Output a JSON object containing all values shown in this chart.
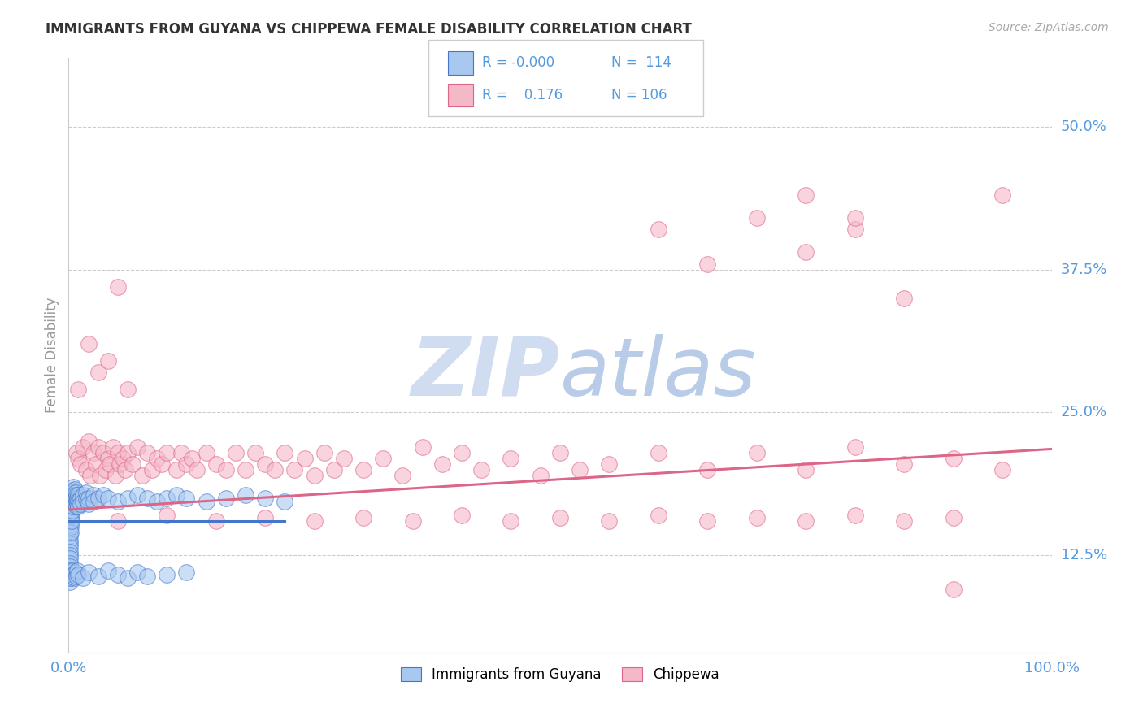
{
  "title": "IMMIGRANTS FROM GUYANA VS CHIPPEWA FEMALE DISABILITY CORRELATION CHART",
  "source": "Source: ZipAtlas.com",
  "ylabel_label": "Female Disability",
  "x_tick_labels": [
    "0.0%",
    "100.0%"
  ],
  "y_tick_labels": [
    "12.5%",
    "25.0%",
    "37.5%",
    "50.0%"
  ],
  "y_tick_values": [
    0.125,
    0.25,
    0.375,
    0.5
  ],
  "xlim": [
    0.0,
    1.0
  ],
  "ylim": [
    0.04,
    0.56
  ],
  "legend_label1": "Immigrants from Guyana",
  "legend_label2": "Chippewa",
  "R1": "-0.000",
  "N1": "114",
  "R2": "0.176",
  "N2": "106",
  "color_blue": "#a8c8f0",
  "color_pink": "#f5b8c8",
  "color_line_blue": "#4477cc",
  "color_line_pink": "#dd6688",
  "background_color": "#ffffff",
  "grid_color": "#cccccc",
  "title_color": "#333333",
  "axis_label_color": "#5599dd",
  "watermark_zip_color": "#d0ddf0",
  "watermark_atlas_color": "#b0cce8",
  "blue_scatter_x": [
    0.001,
    0.001,
    0.001,
    0.001,
    0.001,
    0.001,
    0.001,
    0.001,
    0.001,
    0.001,
    0.001,
    0.001,
    0.001,
    0.001,
    0.001,
    0.001,
    0.001,
    0.001,
    0.001,
    0.001,
    0.002,
    0.002,
    0.002,
    0.002,
    0.002,
    0.002,
    0.002,
    0.002,
    0.002,
    0.002,
    0.003,
    0.003,
    0.003,
    0.003,
    0.003,
    0.003,
    0.003,
    0.003,
    0.004,
    0.004,
    0.004,
    0.004,
    0.004,
    0.004,
    0.005,
    0.005,
    0.005,
    0.005,
    0.005,
    0.006,
    0.006,
    0.006,
    0.006,
    0.007,
    0.007,
    0.007,
    0.008,
    0.008,
    0.008,
    0.009,
    0.009,
    0.01,
    0.01,
    0.01,
    0.012,
    0.012,
    0.015,
    0.015,
    0.018,
    0.018,
    0.02,
    0.02,
    0.025,
    0.025,
    0.03,
    0.035,
    0.04,
    0.05,
    0.06,
    0.07,
    0.08,
    0.09,
    0.1,
    0.11,
    0.12,
    0.14,
    0.16,
    0.18,
    0.2,
    0.22,
    0.001,
    0.001,
    0.001,
    0.002,
    0.002,
    0.003,
    0.003,
    0.004,
    0.005,
    0.006,
    0.007,
    0.008,
    0.009,
    0.01,
    0.015,
    0.02,
    0.03,
    0.04,
    0.05,
    0.06,
    0.07,
    0.08,
    0.1,
    0.12
  ],
  "blue_scatter_y": [
    0.175,
    0.172,
    0.168,
    0.165,
    0.162,
    0.158,
    0.155,
    0.152,
    0.148,
    0.145,
    0.142,
    0.138,
    0.135,
    0.132,
    0.128,
    0.125,
    0.122,
    0.118,
    0.115,
    0.112,
    0.178,
    0.175,
    0.172,
    0.168,
    0.165,
    0.162,
    0.158,
    0.155,
    0.15,
    0.145,
    0.18,
    0.177,
    0.173,
    0.17,
    0.167,
    0.163,
    0.16,
    0.155,
    0.182,
    0.178,
    0.175,
    0.172,
    0.168,
    0.164,
    0.185,
    0.18,
    0.177,
    0.173,
    0.168,
    0.183,
    0.178,
    0.174,
    0.17,
    0.18,
    0.175,
    0.17,
    0.178,
    0.173,
    0.168,
    0.175,
    0.17,
    0.178,
    0.173,
    0.168,
    0.175,
    0.17,
    0.178,
    0.172,
    0.18,
    0.174,
    0.175,
    0.17,
    0.178,
    0.172,
    0.175,
    0.178,
    0.175,
    0.172,
    0.175,
    0.178,
    0.175,
    0.172,
    0.175,
    0.178,
    0.175,
    0.172,
    0.175,
    0.178,
    0.175,
    0.172,
    0.108,
    0.105,
    0.102,
    0.108,
    0.105,
    0.11,
    0.107,
    0.112,
    0.108,
    0.105,
    0.11,
    0.107,
    0.112,
    0.108,
    0.105,
    0.11,
    0.107,
    0.112,
    0.108,
    0.105,
    0.11,
    0.107,
    0.108,
    0.11
  ],
  "pink_scatter_x": [
    0.008,
    0.01,
    0.012,
    0.015,
    0.018,
    0.02,
    0.022,
    0.025,
    0.028,
    0.03,
    0.032,
    0.035,
    0.038,
    0.04,
    0.042,
    0.045,
    0.048,
    0.05,
    0.052,
    0.055,
    0.058,
    0.06,
    0.065,
    0.07,
    0.075,
    0.08,
    0.085,
    0.09,
    0.095,
    0.1,
    0.11,
    0.115,
    0.12,
    0.125,
    0.13,
    0.14,
    0.15,
    0.16,
    0.17,
    0.18,
    0.19,
    0.2,
    0.21,
    0.22,
    0.23,
    0.24,
    0.25,
    0.26,
    0.27,
    0.28,
    0.3,
    0.32,
    0.34,
    0.36,
    0.38,
    0.4,
    0.42,
    0.45,
    0.48,
    0.5,
    0.52,
    0.55,
    0.6,
    0.65,
    0.7,
    0.75,
    0.8,
    0.85,
    0.9,
    0.95,
    0.05,
    0.1,
    0.15,
    0.2,
    0.25,
    0.3,
    0.35,
    0.4,
    0.45,
    0.5,
    0.55,
    0.6,
    0.65,
    0.7,
    0.75,
    0.8,
    0.85,
    0.9,
    0.6,
    0.65,
    0.7,
    0.75,
    0.8,
    0.75,
    0.8,
    0.85,
    0.9,
    0.95,
    0.01,
    0.02,
    0.03,
    0.04,
    0.05,
    0.06
  ],
  "pink_scatter_y": [
    0.215,
    0.21,
    0.205,
    0.22,
    0.2,
    0.225,
    0.195,
    0.215,
    0.205,
    0.22,
    0.195,
    0.215,
    0.2,
    0.21,
    0.205,
    0.22,
    0.195,
    0.215,
    0.205,
    0.21,
    0.2,
    0.215,
    0.205,
    0.22,
    0.195,
    0.215,
    0.2,
    0.21,
    0.205,
    0.215,
    0.2,
    0.215,
    0.205,
    0.21,
    0.2,
    0.215,
    0.205,
    0.2,
    0.215,
    0.2,
    0.215,
    0.205,
    0.2,
    0.215,
    0.2,
    0.21,
    0.195,
    0.215,
    0.2,
    0.21,
    0.2,
    0.21,
    0.195,
    0.22,
    0.205,
    0.215,
    0.2,
    0.21,
    0.195,
    0.215,
    0.2,
    0.205,
    0.215,
    0.2,
    0.215,
    0.2,
    0.22,
    0.205,
    0.21,
    0.2,
    0.155,
    0.16,
    0.155,
    0.158,
    0.155,
    0.158,
    0.155,
    0.16,
    0.155,
    0.158,
    0.155,
    0.16,
    0.155,
    0.158,
    0.155,
    0.16,
    0.155,
    0.158,
    0.41,
    0.38,
    0.42,
    0.39,
    0.41,
    0.44,
    0.42,
    0.35,
    0.095,
    0.44,
    0.27,
    0.31,
    0.285,
    0.295,
    0.36,
    0.27
  ],
  "blue_trend_x_end": 0.22,
  "blue_trend_y": 0.155,
  "pink_trend_x0": 0.0,
  "pink_trend_y0": 0.165,
  "pink_trend_x1": 1.0,
  "pink_trend_y1": 0.218
}
